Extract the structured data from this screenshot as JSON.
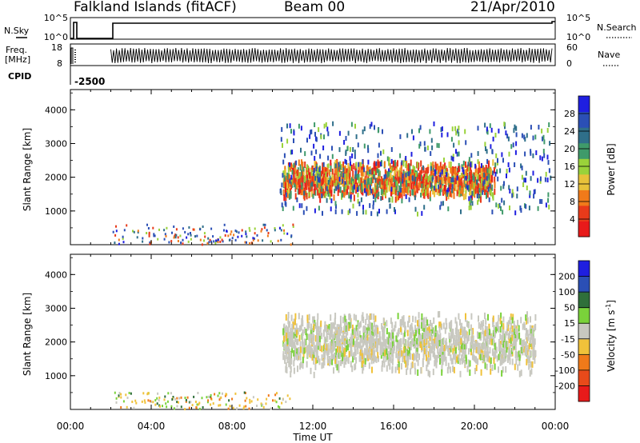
{
  "header": {
    "station": "Falkland Islands (fitACF)",
    "beam": "Beam 00",
    "date": "21/Apr/2010"
  },
  "nsky_panel": {
    "left_label": "N.Sky",
    "left_ticks": [
      "10^5",
      "10^0"
    ],
    "right_ticks": [
      "10^5",
      "10^0"
    ],
    "right_label": "N.Search"
  },
  "freq_panel": {
    "left_label_1": "Freq.",
    "left_label_2": "[MHz]",
    "left_ticks": [
      "18",
      "8"
    ],
    "right_ticks": [
      "60",
      "0"
    ],
    "right_label": "Nave"
  },
  "cpid_panel": {
    "label": "CPID",
    "value": "-2500"
  },
  "colors": {
    "power_scale": [
      "#1f1fe0",
      "#2b4fb5",
      "#2f6f8a",
      "#3f9a6a",
      "#9ad23a",
      "#e8c23a",
      "#f07a1a",
      "#e83a1a",
      "#e81a1a"
    ],
    "velocity_scale": [
      "#1f1fe0",
      "#2b4fb5",
      "#2f6f3a",
      "#7ad23a",
      "#c8c8c0",
      "#f0c23a",
      "#f07a1a",
      "#e84a1a",
      "#e81a1a"
    ],
    "ground_scatter": "#bdbdb5"
  },
  "chart_data": [
    {
      "type": "heatmap",
      "name": "power-panel",
      "ylabel": "Slant Range [km]",
      "xlabel": "",
      "y_ticks": [
        "1000",
        "2000",
        "3000",
        "4000"
      ],
      "ylim": [
        0,
        4600
      ],
      "xlim": [
        0,
        24
      ],
      "x_ticks": [
        0,
        4,
        8,
        12,
        16,
        20,
        24
      ],
      "colorbar": {
        "label": "Power [dB]",
        "ticks": [
          "28",
          "24",
          "20",
          "16",
          "12",
          "8",
          "4"
        ],
        "range": [
          0,
          32
        ]
      },
      "regions": [
        {
          "x_start": 10.5,
          "x_end": 21.0,
          "y_start": 1300,
          "y_end": 2500,
          "level": "high"
        },
        {
          "x_start": 10.3,
          "x_end": 23.8,
          "y_start": 900,
          "y_end": 3600,
          "level": "scattered"
        },
        {
          "x_start": 2.0,
          "x_end": 11.0,
          "y_start": 0,
          "y_end": 600,
          "level": "low"
        }
      ]
    },
    {
      "type": "heatmap",
      "name": "velocity-panel",
      "ylabel": "Slant Range [km]",
      "xlabel": "Time UT",
      "y_ticks": [
        "1000",
        "2000",
        "3000",
        "4000"
      ],
      "ylim": [
        0,
        4600
      ],
      "xlim": [
        0,
        24
      ],
      "x_ticks": [
        0,
        4,
        8,
        12,
        16,
        20,
        24
      ],
      "x_tick_labels": [
        "00:00",
        "04:00",
        "08:00",
        "12:00",
        "16:00",
        "20:00",
        "00:00"
      ],
      "colorbar": {
        "label": "Velocity [m s",
        "label_sup": "-1",
        "label_end": "]",
        "ticks": [
          "200",
          "100",
          "50",
          "15",
          "-15",
          "-50",
          "-100",
          "-200"
        ],
        "range": [
          -250,
          250
        ]
      },
      "regions": [
        {
          "x_start": 10.5,
          "x_end": 23.0,
          "y_start": 1000,
          "y_end": 2900,
          "level": "ground-scatter"
        },
        {
          "x_start": 2.0,
          "x_end": 11.0,
          "y_start": 0,
          "y_end": 500,
          "level": "low-velocity"
        }
      ]
    }
  ]
}
